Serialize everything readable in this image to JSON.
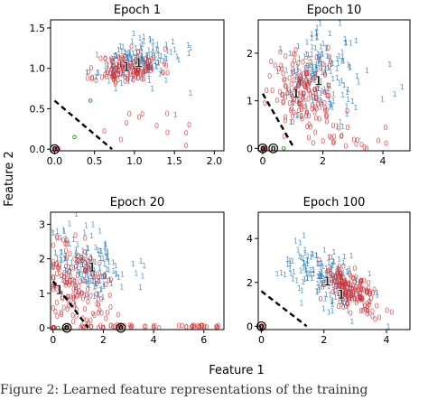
{
  "figure": {
    "xlabel": "Feature 1",
    "ylabel": "Feature 2",
    "caption": "Figure 2: Learned feature representations of the training"
  },
  "colors": {
    "class0": "#d62728",
    "class1": "#1f77b4",
    "centroid_ring": "#2ca02c",
    "boundary": "#000000"
  },
  "chart_data": [
    {
      "type": "scatter",
      "title": "Epoch 1",
      "xlim": [
        -0.05,
        2.12
      ],
      "ylim": [
        -0.02,
        1.6
      ],
      "xticks": [
        0.0,
        0.5,
        1.0,
        1.5,
        2.0
      ],
      "xtick_labels": [
        "0.0",
        "0.5",
        "1.0",
        "1.5",
        "2.0"
      ],
      "yticks": [
        0.0,
        0.5,
        1.0,
        1.5
      ],
      "ytick_labels": [
        "0.0",
        "0.5",
        "1.0",
        "1.5"
      ],
      "cluster0": {
        "cx": 0.92,
        "cy": 1.0,
        "sx": 0.2,
        "sy": 0.1,
        "rho": 0.2,
        "n": 130,
        "seed": 11,
        "tail_n": 12,
        "tail_x": [
          0.6,
          1.8
        ],
        "tail_y": [
          0.0,
          0.45
        ]
      },
      "cluster1": {
        "cx": 1.0,
        "cy": 1.08,
        "sx": 0.22,
        "sy": 0.12,
        "rho": 0.3,
        "n": 150,
        "seed": 23,
        "tail_n": 8,
        "tail_x": [
          1.2,
          1.9
        ],
        "tail_y": [
          0.3,
          1.3
        ]
      },
      "zeros_at_origin": 6,
      "centroid0": [
        0.9,
        1.02
      ],
      "centroid1": [
        1.05,
        1.07
      ],
      "boundary": [
        [
          0.0,
          0.6
        ],
        [
          0.72,
          0.0
        ]
      ],
      "ringed_zeros": [
        [
          0.0,
          0.0
        ]
      ],
      "green_marks": [
        [
          0.25,
          0.15
        ],
        [
          0.45,
          0.6
        ]
      ]
    },
    {
      "type": "scatter",
      "title": "Epoch 10",
      "xlim": [
        -0.15,
        4.9
      ],
      "ylim": [
        -0.05,
        2.7
      ],
      "xticks": [
        0,
        2,
        4
      ],
      "xtick_labels": [
        "0",
        "2",
        "4"
      ],
      "yticks": [
        0,
        1,
        2
      ],
      "ytick_labels": [
        "0",
        "1",
        "2"
      ],
      "cluster0": {
        "cx": 1.3,
        "cy": 1.2,
        "sx": 0.55,
        "sy": 0.4,
        "rho": -0.1,
        "n": 150,
        "seed": 31,
        "tail_n": 25,
        "tail_x": [
          1.5,
          4.2
        ],
        "tail_y": [
          0.0,
          0.5
        ]
      },
      "cluster1": {
        "cx": 1.9,
        "cy": 1.55,
        "sx": 0.6,
        "sy": 0.45,
        "rho": 0.1,
        "n": 160,
        "seed": 41,
        "tail_n": 10,
        "tail_x": [
          2.5,
          4.8
        ],
        "tail_y": [
          0.8,
          2.3
        ]
      },
      "zeros_at_origin": 10,
      "centroid0": [
        1.1,
        1.15
      ],
      "centroid1": [
        1.85,
        1.42
      ],
      "boundary": [
        [
          0.0,
          1.15
        ],
        [
          1.05,
          0.0
        ]
      ],
      "ringed_zeros": [
        [
          0.0,
          0.0
        ],
        [
          0.35,
          0.0
        ]
      ],
      "green_marks": [
        [
          0.7,
          0.0
        ]
      ]
    },
    {
      "type": "scatter",
      "title": "Epoch 20",
      "xlim": [
        -0.1,
        6.8
      ],
      "ylim": [
        -0.05,
        3.35
      ],
      "xticks": [
        0,
        2,
        4,
        6
      ],
      "xtick_labels": [
        "0",
        "2",
        "4",
        "6"
      ],
      "yticks": [
        0,
        1,
        2,
        3
      ],
      "ytick_labels": [
        "0",
        "1",
        "2",
        "3"
      ],
      "cluster0": {
        "cx": 0.9,
        "cy": 1.2,
        "sx": 0.7,
        "sy": 0.7,
        "rho": -0.2,
        "n": 150,
        "seed": 51,
        "tail_n": 50,
        "tail_x": [
          0.3,
          6.6
        ],
        "tail_y": [
          0.0,
          0.08
        ]
      },
      "cluster1": {
        "cx": 1.3,
        "cy": 1.9,
        "sx": 0.65,
        "sy": 0.55,
        "rho": -0.2,
        "n": 150,
        "seed": 61,
        "tail_n": 10,
        "tail_x": [
          2.0,
          4.0
        ],
        "tail_y": [
          1.0,
          2.0
        ]
      },
      "zeros_at_origin": 6,
      "centroid0": [
        0.25,
        1.1
      ],
      "centroid1": [
        1.55,
        1.75
      ],
      "boundary": [
        [
          0.0,
          1.35
        ],
        [
          1.4,
          0.0
        ]
      ],
      "ringed_zeros": [
        [
          0.55,
          0.0
        ],
        [
          2.7,
          0.0
        ]
      ],
      "green_marks": [
        [
          0.2,
          0.0
        ],
        [
          0.5,
          0.0
        ]
      ]
    },
    {
      "type": "scatter",
      "title": "Epoch 100",
      "xlim": [
        -0.1,
        4.75
      ],
      "ylim": [
        -0.15,
        5.2
      ],
      "xticks": [
        0,
        2,
        4
      ],
      "xtick_labels": [
        "0",
        "2",
        "4"
      ],
      "yticks": [
        0,
        2,
        4
      ],
      "ytick_labels": [
        "0",
        "2",
        "4"
      ],
      "cluster0": {
        "cx": 2.85,
        "cy": 1.65,
        "sx": 0.45,
        "sy": 0.55,
        "rho": -0.5,
        "n": 150,
        "seed": 71,
        "tail_n": 8,
        "tail_x": [
          3.2,
          4.2
        ],
        "tail_y": [
          0.3,
          1.3
        ]
      },
      "cluster1": {
        "cx": 2.15,
        "cy": 2.25,
        "sx": 0.6,
        "sy": 0.75,
        "rho": -0.55,
        "n": 170,
        "seed": 81,
        "tail_n": 8,
        "tail_x": [
          0.3,
          1.6
        ],
        "tail_y": [
          2.0,
          4.1
        ]
      },
      "zeros_at_origin": 5,
      "centroid0": [
        2.55,
        1.45
      ],
      "centroid1": [
        2.1,
        2.05
      ],
      "boundary": [
        [
          0.0,
          1.6
        ],
        [
          1.45,
          0.0
        ]
      ],
      "ringed_zeros": [
        [
          0.0,
          0.0
        ]
      ],
      "green_marks": []
    }
  ]
}
